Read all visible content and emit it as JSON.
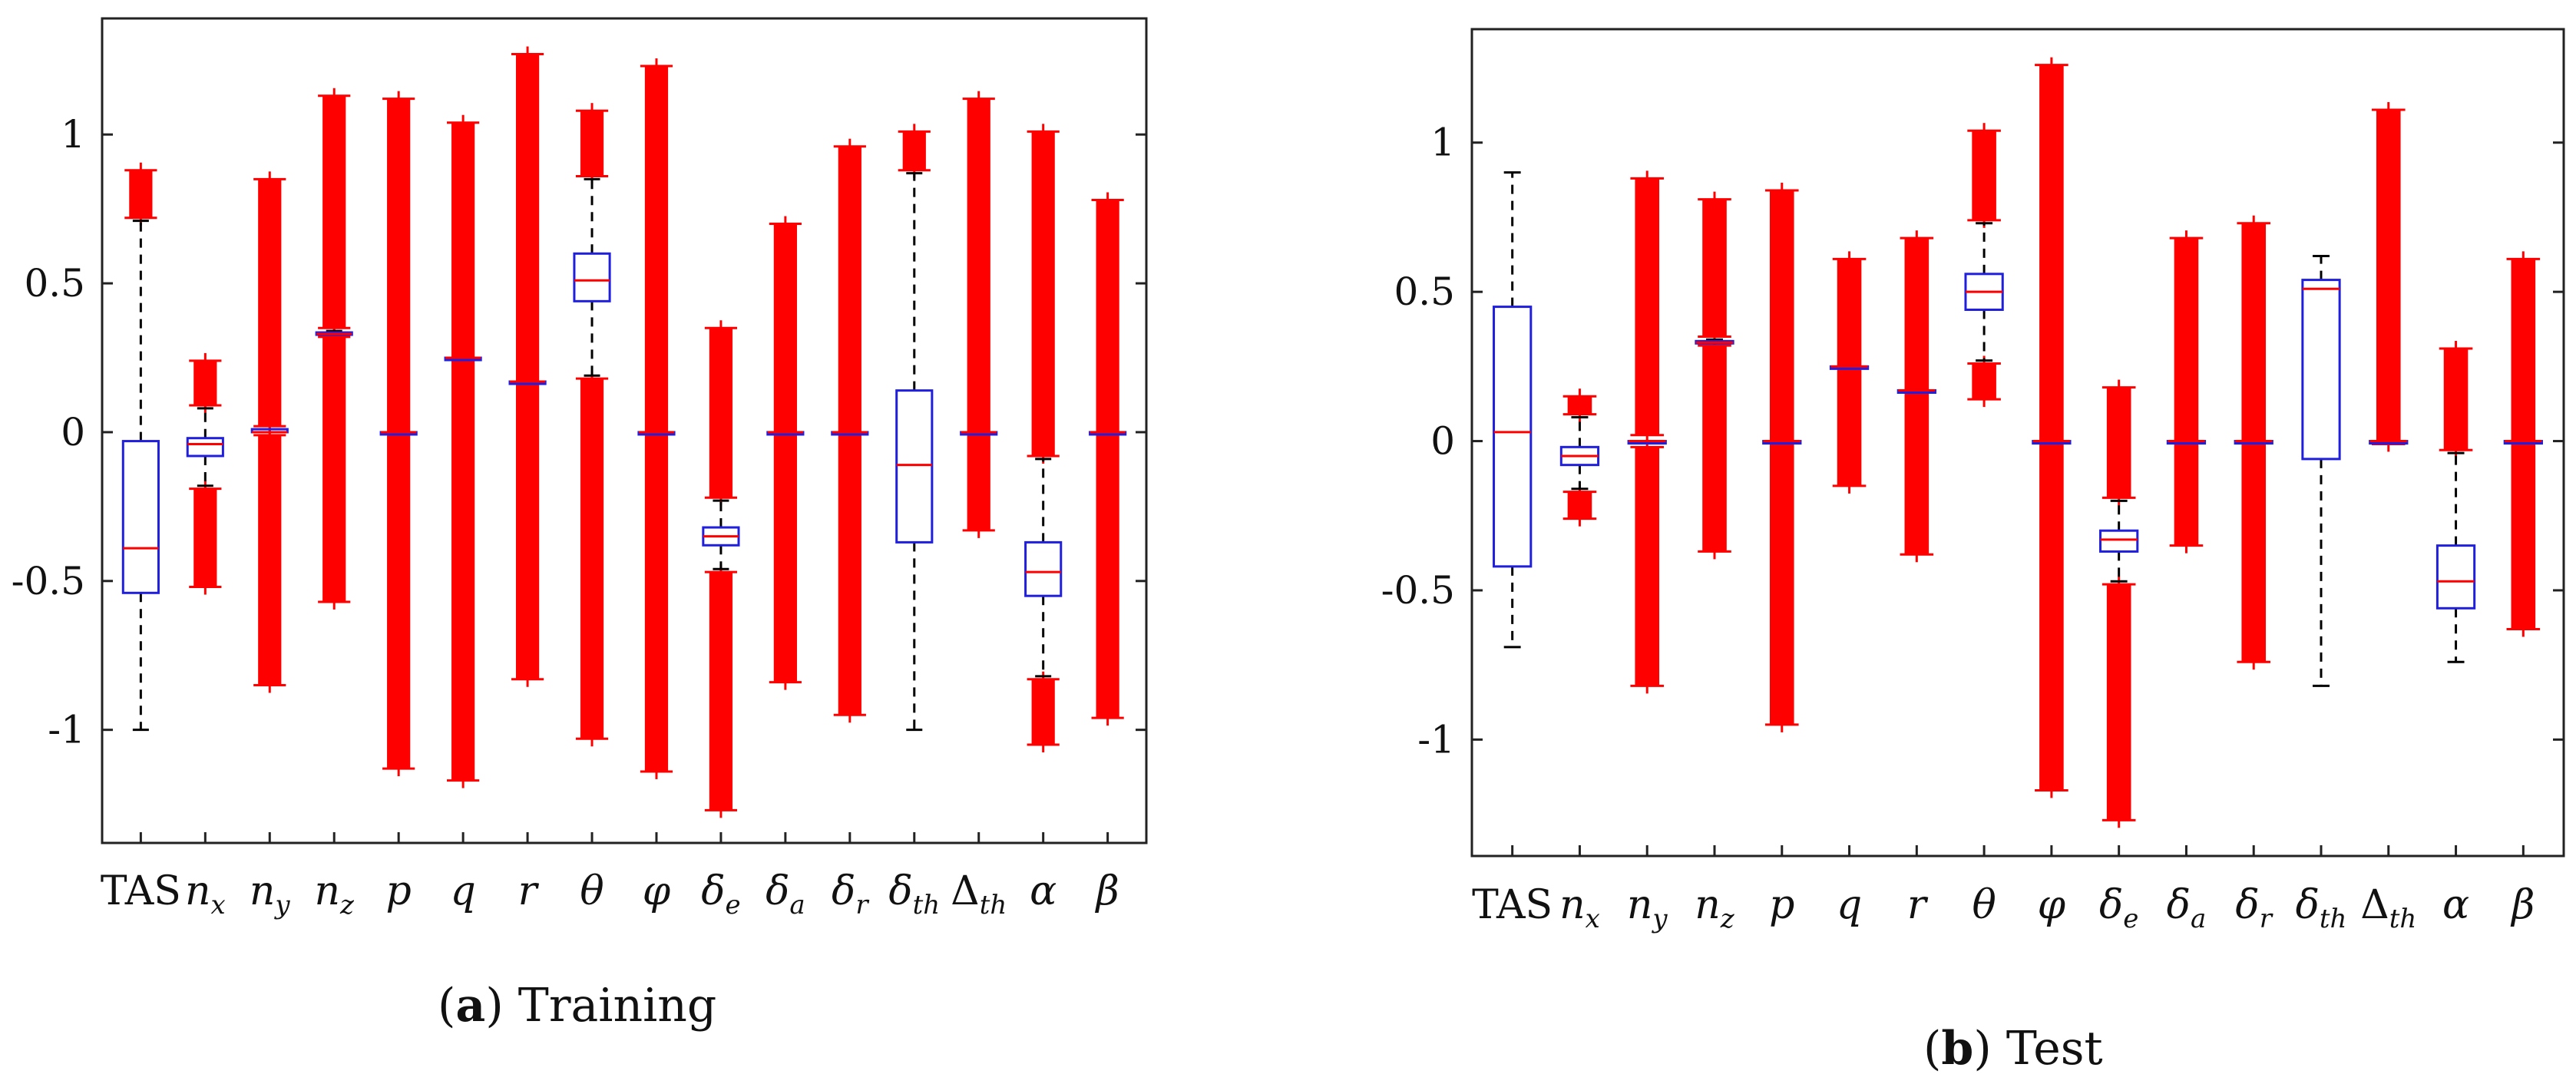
{
  "chart_data": [
    {
      "type": "box",
      "title": "",
      "caption": {
        "label": "a",
        "text": "Training"
      },
      "ylim": [
        -1.38,
        1.39
      ],
      "yticks": [
        -1,
        -0.5,
        0,
        0.5,
        1
      ],
      "ytick_labels": [
        "-1",
        "-0.5",
        "0",
        "0.5",
        "1"
      ],
      "categories": [
        "TAS",
        "n_x",
        "n_y",
        "n_z",
        "p",
        "q",
        "r",
        "θ",
        "φ",
        "δ_e",
        "δ_a",
        "δ_r",
        "δ_th",
        "Δ_th",
        "α",
        "β"
      ],
      "colors": {
        "box": "#1f1fdd",
        "median": "#ff0000",
        "outlier": "#ff0000",
        "whisker": "#000000"
      },
      "boxes": [
        {
          "name": "TAS",
          "q1": -0.54,
          "median": -0.39,
          "q3": -0.03,
          "wlo": -1.0,
          "whi": 0.71,
          "outliers": [
            [
              0.72,
              0.88
            ]
          ]
        },
        {
          "name": "n_x",
          "q1": -0.08,
          "median": -0.04,
          "q3": -0.02,
          "wlo": -0.18,
          "whi": 0.08,
          "outliers": [
            [
              0.09,
              0.24
            ],
            [
              -0.52,
              -0.19
            ]
          ]
        },
        {
          "name": "n_y",
          "q1": 0.0,
          "median": 0.0,
          "q3": 0.01,
          "wlo": 0.0,
          "whi": 0.01,
          "outliers": [
            [
              0.02,
              0.85
            ],
            [
              -0.85,
              -0.01
            ]
          ]
        },
        {
          "name": "n_z",
          "q1": 0.33,
          "median": 0.33,
          "q3": 0.335,
          "wlo": 0.33,
          "whi": 0.34,
          "outliers": [
            [
              0.35,
              1.13
            ],
            [
              -0.57,
              0.32
            ]
          ]
        },
        {
          "name": "p",
          "q1": 0.0,
          "median": 0.0,
          "q3": 0.0,
          "wlo": 0.0,
          "whi": 0.0,
          "outliers": [
            [
              -1.13,
              1.12
            ]
          ]
        },
        {
          "name": "q",
          "q1": 0.25,
          "median": 0.25,
          "q3": 0.25,
          "wlo": 0.25,
          "whi": 0.25,
          "outliers": [
            [
              -1.17,
              1.04
            ]
          ]
        },
        {
          "name": "r",
          "q1": 0.17,
          "median": 0.17,
          "q3": 0.17,
          "wlo": 0.17,
          "whi": 0.17,
          "outliers": [
            [
              -0.83,
              1.27
            ]
          ]
        },
        {
          "name": "θ",
          "q1": 0.44,
          "median": 0.51,
          "q3": 0.6,
          "wlo": 0.19,
          "whi": 0.85,
          "outliers": [
            [
              0.86,
              1.08
            ],
            [
              -1.03,
              0.18
            ]
          ]
        },
        {
          "name": "φ",
          "q1": 0.0,
          "median": 0.0,
          "q3": 0.0,
          "wlo": 0.0,
          "whi": 0.0,
          "outliers": [
            [
              -1.14,
              1.23
            ]
          ]
        },
        {
          "name": "δ_e",
          "q1": -0.38,
          "median": -0.35,
          "q3": -0.32,
          "wlo": -0.46,
          "whi": -0.23,
          "outliers": [
            [
              -0.22,
              0.35
            ],
            [
              -1.27,
              -0.47
            ]
          ]
        },
        {
          "name": "δ_a",
          "q1": 0.0,
          "median": 0.0,
          "q3": 0.0,
          "wlo": 0.0,
          "whi": 0.0,
          "outliers": [
            [
              -0.84,
              0.7
            ]
          ]
        },
        {
          "name": "δ_r",
          "q1": 0.0,
          "median": 0.0,
          "q3": 0.0,
          "wlo": 0.0,
          "whi": 0.0,
          "outliers": [
            [
              -0.95,
              0.96
            ]
          ]
        },
        {
          "name": "δ_th",
          "q1": -0.37,
          "median": -0.11,
          "q3": 0.14,
          "wlo": -1.0,
          "whi": 0.87,
          "outliers": [
            [
              0.88,
              1.01
            ]
          ]
        },
        {
          "name": "Δ_th",
          "q1": 0.0,
          "median": 0.0,
          "q3": 0.0,
          "wlo": 0.0,
          "whi": 0.0,
          "outliers": [
            [
              -0.33,
              1.12
            ]
          ]
        },
        {
          "name": "α",
          "q1": -0.55,
          "median": -0.47,
          "q3": -0.37,
          "wlo": -0.82,
          "whi": -0.09,
          "outliers": [
            [
              -0.08,
              1.01
            ],
            [
              -1.05,
              -0.83
            ]
          ]
        },
        {
          "name": "β",
          "q1": 0.0,
          "median": 0.0,
          "q3": 0.0,
          "wlo": 0.0,
          "whi": 0.0,
          "outliers": [
            [
              -0.96,
              0.78
            ]
          ]
        }
      ]
    },
    {
      "type": "box",
      "title": "",
      "caption": {
        "label": "b",
        "text": "Test"
      },
      "ylim": [
        -1.39,
        1.38
      ],
      "yticks": [
        -1,
        -0.5,
        0,
        0.5,
        1
      ],
      "ytick_labels": [
        "-1",
        "-0.5",
        "0",
        "0.5",
        "1"
      ],
      "categories": [
        "TAS",
        "n_x",
        "n_y",
        "n_z",
        "p",
        "q",
        "r",
        "θ",
        "φ",
        "δ_e",
        "δ_a",
        "δ_r",
        "δ_th",
        "Δ_th",
        "α",
        "β"
      ],
      "colors": {
        "box": "#1f1fdd",
        "median": "#ff0000",
        "outlier": "#ff0000",
        "whisker": "#000000"
      },
      "boxes": [
        {
          "name": "TAS",
          "q1": -0.42,
          "median": 0.03,
          "q3": 0.45,
          "wlo": -0.69,
          "whi": 0.9,
          "outliers": []
        },
        {
          "name": "n_x",
          "q1": -0.08,
          "median": -0.05,
          "q3": -0.02,
          "wlo": -0.16,
          "whi": 0.08,
          "outliers": [
            [
              0.09,
              0.15
            ],
            [
              -0.26,
              -0.17
            ]
          ]
        },
        {
          "name": "n_y",
          "q1": 0.0,
          "median": 0.0,
          "q3": 0.0,
          "wlo": 0.0,
          "whi": 0.0,
          "outliers": [
            [
              0.02,
              0.88
            ],
            [
              -0.82,
              -0.02
            ]
          ]
        },
        {
          "name": "n_z",
          "q1": 0.33,
          "median": 0.33,
          "q3": 0.335,
          "wlo": 0.33,
          "whi": 0.34,
          "outliers": [
            [
              0.35,
              0.81
            ],
            [
              -0.37,
              0.32
            ]
          ]
        },
        {
          "name": "p",
          "q1": 0.0,
          "median": 0.0,
          "q3": 0.0,
          "wlo": 0.0,
          "whi": 0.0,
          "outliers": [
            [
              -0.95,
              0.84
            ]
          ]
        },
        {
          "name": "q",
          "q1": 0.25,
          "median": 0.25,
          "q3": 0.25,
          "wlo": 0.25,
          "whi": 0.25,
          "outliers": [
            [
              -0.15,
              0.61
            ]
          ]
        },
        {
          "name": "r",
          "q1": 0.17,
          "median": 0.17,
          "q3": 0.17,
          "wlo": 0.17,
          "whi": 0.17,
          "outliers": [
            [
              -0.38,
              0.68
            ]
          ]
        },
        {
          "name": "θ",
          "q1": 0.44,
          "median": 0.5,
          "q3": 0.56,
          "wlo": 0.27,
          "whi": 0.73,
          "outliers": [
            [
              0.74,
              1.04
            ],
            [
              0.14,
              0.26
            ]
          ]
        },
        {
          "name": "φ",
          "q1": 0.0,
          "median": 0.0,
          "q3": 0.0,
          "wlo": 0.0,
          "whi": 0.0,
          "outliers": [
            [
              -1.17,
              1.26
            ]
          ]
        },
        {
          "name": "δ_e",
          "q1": -0.37,
          "median": -0.33,
          "q3": -0.3,
          "wlo": -0.47,
          "whi": -0.2,
          "outliers": [
            [
              -0.19,
              0.18
            ],
            [
              -1.27,
              -0.48
            ]
          ]
        },
        {
          "name": "δ_a",
          "q1": 0.0,
          "median": 0.0,
          "q3": 0.0,
          "wlo": 0.0,
          "whi": 0.0,
          "outliers": [
            [
              -0.35,
              0.68
            ]
          ]
        },
        {
          "name": "δ_r",
          "q1": 0.0,
          "median": 0.0,
          "q3": 0.0,
          "wlo": 0.0,
          "whi": 0.0,
          "outliers": [
            [
              -0.74,
              0.73
            ]
          ]
        },
        {
          "name": "δ_th",
          "q1": -0.06,
          "median": 0.51,
          "q3": 0.54,
          "wlo": -0.82,
          "whi": 0.62,
          "outliers": []
        },
        {
          "name": "Δ_th",
          "q1": 0.0,
          "median": 0.0,
          "q3": 0.0,
          "wlo": 0.0,
          "whi": 0.0,
          "outliers": [
            [
              -0.01,
              1.11
            ]
          ]
        },
        {
          "name": "α",
          "q1": -0.56,
          "median": -0.47,
          "q3": -0.35,
          "wlo": -0.74,
          "whi": -0.04,
          "outliers": [
            [
              -0.03,
              0.31
            ]
          ]
        },
        {
          "name": "β",
          "q1": 0.0,
          "median": 0.0,
          "q3": 0.0,
          "wlo": 0.0,
          "whi": 0.0,
          "outliers": [
            [
              -0.63,
              0.61
            ]
          ]
        }
      ]
    }
  ]
}
